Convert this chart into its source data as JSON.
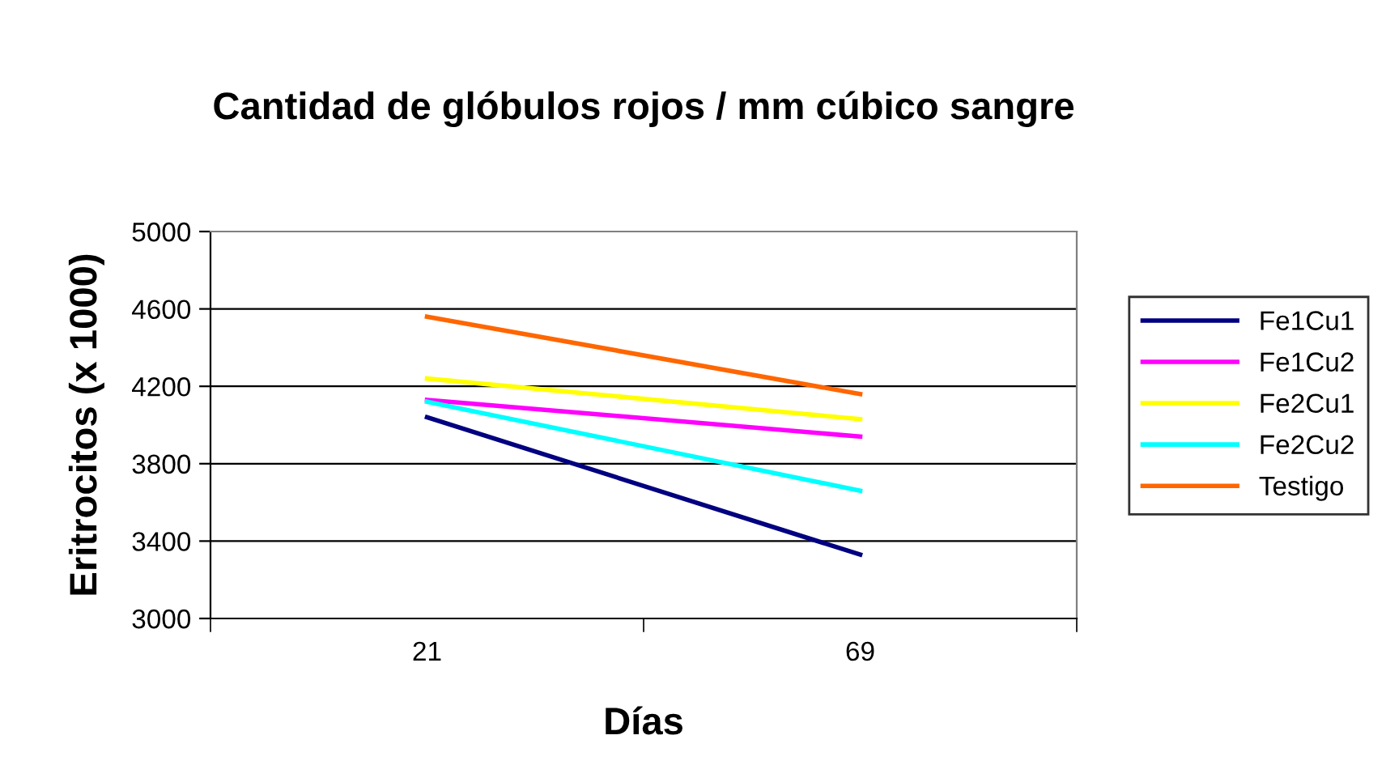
{
  "chart_data": {
    "type": "line",
    "title": "Cantidad de glóbulos rojos / mm cúbico sangre",
    "xlabel": "Días",
    "ylabel": "Eritrocitos (x 1000)",
    "categories": [
      "21",
      "69"
    ],
    "series": [
      {
        "name": "Fe1Cu1",
        "color": "#000080",
        "values": [
          4040,
          3330
        ]
      },
      {
        "name": "Fe1Cu2",
        "color": "#ff00ff",
        "values": [
          4130,
          3940
        ]
      },
      {
        "name": "Fe2Cu1",
        "color": "#ffff00",
        "values": [
          4240,
          4030
        ]
      },
      {
        "name": "Fe2Cu2",
        "color": "#00ffff",
        "values": [
          4120,
          3660
        ]
      },
      {
        "name": "Testigo",
        "color": "#ff6600",
        "values": [
          4560,
          4160
        ]
      }
    ],
    "ylim": [
      3000,
      5000
    ],
    "yticks": [
      3000,
      3400,
      3800,
      4200,
      4600,
      5000
    ],
    "grid": "y",
    "legend": "right",
    "marker": "none",
    "line_style": "solid"
  }
}
